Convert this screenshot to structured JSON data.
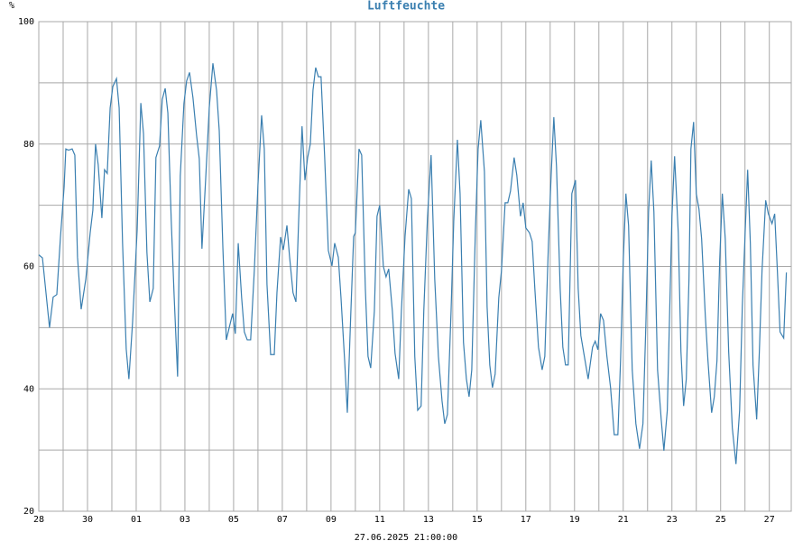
{
  "chart_data": {
    "type": "line",
    "title": "Luftfeuchte",
    "y_unit": "%",
    "x_label": "27.06.2025 21:00:00",
    "xlim": [
      0,
      30.9
    ],
    "ylim": [
      20,
      100
    ],
    "xticks": [
      {
        "value": 0,
        "label": "28"
      },
      {
        "value": 2,
        "label": "30"
      },
      {
        "value": 4,
        "label": "01"
      },
      {
        "value": 6,
        "label": "03"
      },
      {
        "value": 8,
        "label": "05"
      },
      {
        "value": 10,
        "label": "07"
      },
      {
        "value": 12,
        "label": "09"
      },
      {
        "value": 14,
        "label": "11"
      },
      {
        "value": 16,
        "label": "13"
      },
      {
        "value": 18,
        "label": "15"
      },
      {
        "value": 20,
        "label": "17"
      },
      {
        "value": 22,
        "label": "19"
      },
      {
        "value": 24,
        "label": "21"
      },
      {
        "value": 26,
        "label": "23"
      },
      {
        "value": 28,
        "label": "25"
      },
      {
        "value": 30,
        "label": "27"
      }
    ],
    "xticks_minor": [
      1,
      3,
      5,
      7,
      9,
      11,
      13,
      15,
      17,
      19,
      21,
      23,
      25,
      27,
      29
    ],
    "yticks": [
      20,
      40,
      60,
      80,
      100
    ],
    "yticks_minor": [
      30,
      50,
      70,
      90
    ],
    "grid": true,
    "grid_color": "#a8a8a8",
    "title_color": "#3a7fb0",
    "x": [
      0,
      0.15,
      0.44,
      0.59,
      0.74,
      0.89,
      1.04,
      1.11,
      1.22,
      1.37,
      1.48,
      1.59,
      1.74,
      1.93,
      2,
      2.11,
      2.22,
      2.33,
      2.44,
      2.59,
      2.7,
      2.81,
      2.93,
      3.04,
      3.19,
      3.3,
      3.44,
      3.59,
      3.7,
      3.85,
      4.04,
      4.19,
      4.3,
      4.44,
      4.56,
      4.7,
      4.81,
      4.96,
      5.07,
      5.19,
      5.3,
      5.44,
      5.56,
      5.7,
      5.81,
      5.96,
      6.07,
      6.19,
      6.33,
      6.48,
      6.59,
      6.7,
      6.85,
      7,
      7.15,
      7.3,
      7.41,
      7.56,
      7.7,
      7.85,
      7.96,
      8.07,
      8.19,
      8.33,
      8.44,
      8.56,
      8.7,
      8.85,
      9,
      9.15,
      9.26,
      9.37,
      9.52,
      9.67,
      9.78,
      9.93,
      10.04,
      10.19,
      10.3,
      10.44,
      10.56,
      10.67,
      10.81,
      10.93,
      11.04,
      11.15,
      11.26,
      11.37,
      11.48,
      11.59,
      11.74,
      11.89,
      12.04,
      12.15,
      12.3,
      12.41,
      12.56,
      12.67,
      12.81,
      12.93,
      13,
      13.15,
      13.26,
      13.41,
      13.52,
      13.63,
      13.78,
      13.89,
      14,
      14.15,
      14.26,
      14.37,
      14.52,
      14.63,
      14.78,
      14.89,
      15.04,
      15.19,
      15.3,
      15.44,
      15.56,
      15.7,
      15.81,
      15.96,
      16.11,
      16.26,
      16.41,
      16.56,
      16.67,
      16.78,
      16.93,
      17.04,
      17.19,
      17.3,
      17.44,
      17.56,
      17.67,
      17.78,
      17.93,
      18.04,
      18.15,
      18.3,
      18.41,
      18.52,
      18.63,
      18.74,
      18.89,
      19,
      19.15,
      19.26,
      19.37,
      19.52,
      19.63,
      19.78,
      19.89,
      20,
      20.15,
      20.26,
      20.37,
      20.52,
      20.67,
      20.78,
      20.93,
      21.04,
      21.15,
      21.26,
      21.41,
      21.52,
      21.63,
      21.74,
      21.89,
      22.04,
      22.15,
      22.26,
      22.37,
      22.56,
      22.74,
      22.85,
      22.96,
      23.07,
      23.19,
      23.33,
      23.48,
      23.63,
      23.78,
      23.89,
      24,
      24.11,
      24.22,
      24.37,
      24.52,
      24.67,
      24.81,
      24.93,
      25.04,
      25.15,
      25.26,
      25.41,
      25.56,
      25.67,
      25.81,
      25.93,
      26,
      26.11,
      26.26,
      26.37,
      26.48,
      26.59,
      26.7,
      26.78,
      26.89,
      27,
      27.11,
      27.22,
      27.37,
      27.48,
      27.63,
      27.74,
      27.85,
      27.96,
      28.07,
      28.19,
      28.33,
      28.48,
      28.63,
      28.78,
      28.89,
      29,
      29.11,
      29.22,
      29.33,
      29.48,
      29.59,
      29.7,
      29.85,
      29.96,
      30.11,
      30.22,
      30.33,
      30.44,
      30.59,
      30.7
    ],
    "series": [
      {
        "name": "Luftfeuchte",
        "color": "#3a7fb0",
        "values": [
          61.9,
          61.4,
          50,
          55,
          55.4,
          64.8,
          73,
          79.2,
          79,
          79.2,
          78.2,
          61.5,
          53,
          57.9,
          60.8,
          65.5,
          69.2,
          80,
          76.6,
          67.9,
          75.8,
          75.2,
          85.9,
          89.4,
          90.7,
          85.9,
          63.8,
          46.5,
          41.6,
          50.8,
          66,
          86.7,
          81.7,
          62.3,
          54.2,
          56.4,
          77.8,
          79.7,
          87.3,
          89.1,
          85.1,
          67.4,
          55,
          42,
          74.8,
          86.6,
          90.3,
          91.7,
          87.6,
          81.4,
          77.6,
          62.9,
          74.1,
          85.9,
          93.2,
          88.8,
          82.2,
          63,
          48,
          50.5,
          52.3,
          49,
          63.8,
          54.9,
          49.3,
          48,
          48,
          59.3,
          73.3,
          84.7,
          79.2,
          57.1,
          45.6,
          45.6,
          55.7,
          64.8,
          62.7,
          66.7,
          61.5,
          55.7,
          54.2,
          67.4,
          82.9,
          74.1,
          77.8,
          80,
          88.8,
          92.5,
          91,
          91,
          77.8,
          62.6,
          60.1,
          63.8,
          61.5,
          54.9,
          44.6,
          36.1,
          52,
          64.9,
          65.5,
          79.2,
          78.2,
          56.4,
          45.3,
          43.4,
          52.7,
          68.2,
          70,
          60,
          58.3,
          59.6,
          52.7,
          45.8,
          41.6,
          52.7,
          64.9,
          72.6,
          71.1,
          45.3,
          36.5,
          37.2,
          52.7,
          67.9,
          78.2,
          57.9,
          45.3,
          38,
          34.3,
          35.8,
          52.7,
          67.4,
          80.7,
          71.9,
          47.6,
          41.6,
          38.7,
          43.1,
          66,
          79.2,
          83.9,
          75.5,
          53.4,
          43.9,
          40.2,
          42.4,
          54.9,
          59.3,
          70.4,
          70.4,
          72.3,
          77.8,
          74.9,
          68.2,
          70.4,
          66.3,
          65.5,
          64.1,
          56.4,
          46.8,
          43.1,
          45.3,
          63.8,
          74.9,
          84.4,
          76.3,
          56.4,
          46.8,
          43.9,
          43.9,
          71.9,
          74.1,
          56.4,
          48.7,
          46.1,
          41.6,
          46.8,
          47.8,
          46.4,
          52.3,
          51.2,
          45.3,
          40.2,
          32.5,
          32.5,
          44.6,
          60.8,
          71.9,
          66.7,
          43.1,
          34.3,
          30.2,
          34.3,
          50.5,
          68.9,
          77.3,
          68.9,
          43.1,
          35,
          29.9,
          36.5,
          56.4,
          68.2,
          78,
          65.5,
          46.1,
          37.2,
          41.6,
          57.9,
          79.2,
          83.6,
          71.9,
          69.4,
          64.5,
          52,
          44.6,
          36.1,
          38.7,
          44.6,
          60.8,
          71.9,
          64.5,
          46.1,
          33.6,
          27.7,
          36.5,
          53.4,
          64.9,
          75.8,
          63.8,
          43.9,
          35,
          46.1,
          59.3,
          70.8,
          68.6,
          67,
          68.6,
          59.3,
          49.3,
          48.3,
          59
        ]
      }
    ]
  }
}
